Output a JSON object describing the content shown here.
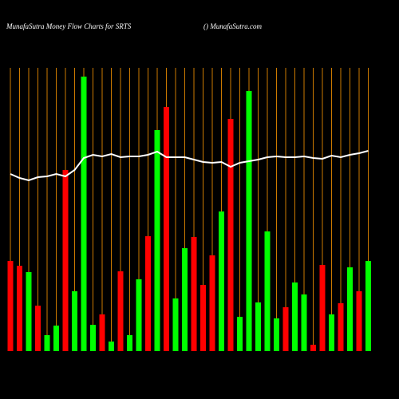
{
  "chart_data": {
    "type": "bar",
    "title": "MunafaSutra  Money Flow  Charts for SRTS",
    "subtitle": "() MunafaSutra.com",
    "categories": [
      null,
      null,
      null,
      null,
      null,
      null,
      null,
      null,
      null,
      null,
      null,
      null,
      null,
      null,
      null,
      null,
      null,
      null,
      null,
      null,
      null,
      null,
      null,
      null,
      null,
      null,
      null,
      null,
      null,
      null,
      null,
      null,
      null,
      null,
      null,
      null,
      null,
      null,
      null,
      null
    ],
    "values": [
      113,
      107,
      99,
      57,
      20,
      32,
      227,
      75,
      344,
      33,
      46,
      12,
      100,
      20,
      90,
      144,
      277,
      306,
      66,
      129,
      143,
      83,
      120,
      175,
      291,
      43,
      326,
      61,
      150,
      41,
      55,
      86,
      71,
      8,
      108,
      46,
      60,
      105,
      75,
      113
    ],
    "colors": [
      "#ff0000",
      "#ff0000",
      "#00ff00",
      "#ff0000",
      "#00ff00",
      "#00ff00",
      "#ff0000",
      "#00ff00",
      "#00ff00",
      "#00ff00",
      "#ff0000",
      "#00ff00",
      "#ff0000",
      "#00ff00",
      "#00ff00",
      "#ff0000",
      "#00ff00",
      "#ff0000",
      "#00ff00",
      "#00ff00",
      "#ff0000",
      "#ff0000",
      "#ff0000",
      "#00ff00",
      "#ff0000",
      "#00ff00",
      "#00ff00",
      "#00ff00",
      "#00ff00",
      "#00ff00",
      "#ff0000",
      "#00ff00",
      "#00ff00",
      "#ff0000",
      "#ff0000",
      "#00ff00",
      "#ff0000",
      "#00ff00",
      "#ff0000",
      "#00ff00"
    ],
    "line": {
      "color": "#ffffff",
      "values": [
        222,
        217,
        214,
        218,
        219,
        222,
        219,
        227,
        242,
        246,
        244,
        247,
        243,
        244,
        244,
        246,
        250,
        243,
        243,
        243,
        240,
        237,
        236,
        237,
        231,
        236,
        238,
        240,
        243,
        244,
        243,
        243,
        244,
        242,
        241,
        245,
        243,
        246,
        248,
        251
      ]
    },
    "ylim": [
      0,
      360
    ],
    "grid_color": "#cc7a00"
  }
}
